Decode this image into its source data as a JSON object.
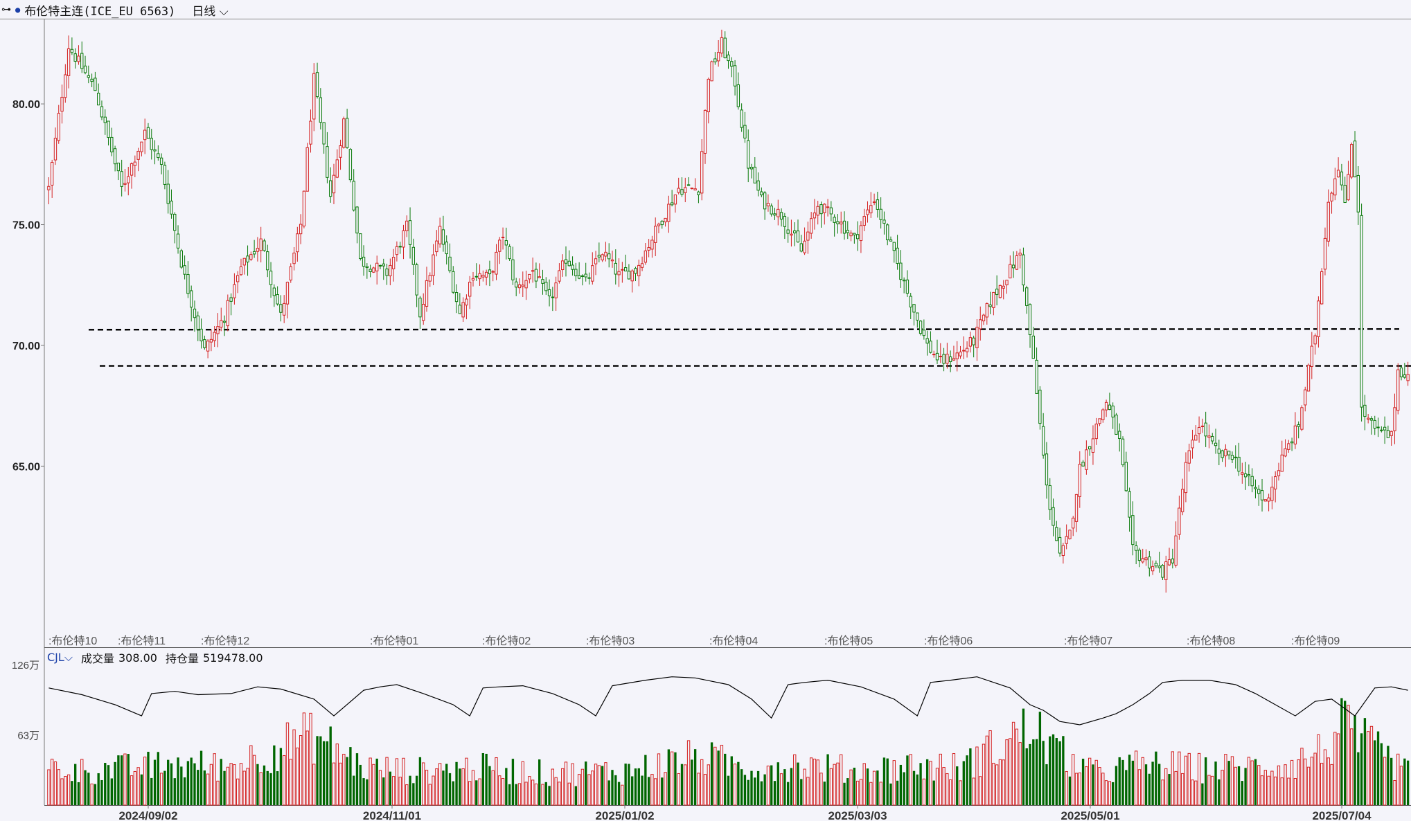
{
  "header": {
    "link_icon": "link-icon",
    "dot_icon": "dot-icon",
    "title": "布伦特主连(ICE_EU 6563)",
    "period": "日线",
    "period_icon": "chevron-down-icon"
  },
  "volume_panel": {
    "indicator": "CJL",
    "indicator_icon": "chevron-down-icon",
    "volume_label": "成交量",
    "volume_value": "308.00",
    "oi_label": "持仓量",
    "oi_value": "519478.00"
  },
  "colors": {
    "up": "#d42020",
    "down": "#0a7a0a",
    "bar_down": "#006600",
    "line": "#000000"
  },
  "chart_data": {
    "type": "candlestick",
    "price_axis": {
      "ylim": [
        57.5,
        83.5
      ],
      "ticks": [
        "80.00",
        "75.00",
        "70.00",
        "65.00"
      ]
    },
    "volume_axis": {
      "ylim": [
        0,
        126
      ],
      "ticks": [
        "126万",
        "63万"
      ]
    },
    "date_labels": [
      "2024/09/02",
      "2024/11/01",
      "2025/01/02",
      "2025/03/03",
      "2025/05/01",
      "2025/07/04"
    ],
    "contract_labels": [
      "布伦特10",
      "布伦特11",
      "布伦特12",
      "布伦特01",
      "布伦特02",
      "布伦特03",
      "布伦特04",
      "布伦特05",
      "布伦特06",
      "布伦特07",
      "布伦特08",
      "布伦特09"
    ],
    "horizontal_lines": [
      70.65,
      69.15
    ],
    "last_price": 68.8,
    "price_path": [
      [
        0,
        76.5
      ],
      [
        6,
        82.4
      ],
      [
        14,
        80.6
      ],
      [
        22,
        76.5
      ],
      [
        29,
        78.8
      ],
      [
        34,
        77.4
      ],
      [
        41,
        72.8
      ],
      [
        47,
        69.8
      ],
      [
        53,
        71.2
      ],
      [
        58,
        73.2
      ],
      [
        64,
        74.3
      ],
      [
        70,
        71.2
      ],
      [
        76,
        75.0
      ],
      [
        80,
        81.0
      ],
      [
        85,
        76.2
      ],
      [
        89,
        79.3
      ],
      [
        94,
        73.5
      ],
      [
        102,
        73.0
      ],
      [
        108,
        74.9
      ],
      [
        112,
        71.3
      ],
      [
        118,
        74.8
      ],
      [
        124,
        71.3
      ],
      [
        128,
        73.0
      ],
      [
        133,
        72.8
      ],
      [
        137,
        74.6
      ],
      [
        141,
        72.3
      ],
      [
        146,
        73.1
      ],
      [
        151,
        71.8
      ],
      [
        156,
        73.6
      ],
      [
        162,
        72.6
      ],
      [
        167,
        73.9
      ],
      [
        172,
        72.9
      ],
      [
        177,
        73.1
      ],
      [
        184,
        75.0
      ],
      [
        190,
        76.5
      ],
      [
        196,
        76.5
      ],
      [
        199,
        81.2
      ],
      [
        203,
        82.5
      ],
      [
        207,
        80.9
      ],
      [
        211,
        77.5
      ],
      [
        215,
        76.0
      ],
      [
        221,
        75.4
      ],
      [
        227,
        73.9
      ],
      [
        232,
        75.8
      ],
      [
        238,
        75.2
      ],
      [
        243,
        74.4
      ],
      [
        249,
        76.1
      ],
      [
        255,
        73.7
      ],
      [
        260,
        71.8
      ],
      [
        265,
        70.0
      ],
      [
        269,
        69.3
      ],
      [
        275,
        69.7
      ],
      [
        279,
        70.2
      ],
      [
        284,
        71.8
      ],
      [
        289,
        72.9
      ],
      [
        293,
        73.8
      ],
      [
        297,
        69.3
      ],
      [
        301,
        64.1
      ],
      [
        305,
        61.2
      ],
      [
        308,
        62.2
      ],
      [
        311,
        64.9
      ],
      [
        315,
        66.3
      ],
      [
        319,
        67.7
      ],
      [
        323,
        66.0
      ],
      [
        327,
        61.5
      ],
      [
        331,
        61.1
      ],
      [
        336,
        60.6
      ],
      [
        339,
        61.2
      ],
      [
        343,
        65.0
      ],
      [
        347,
        66.8
      ],
      [
        353,
        65.4
      ],
      [
        357,
        65.5
      ],
      [
        361,
        64.5
      ],
      [
        367,
        63.5
      ],
      [
        372,
        65.3
      ],
      [
        377,
        66.7
      ],
      [
        382,
        70.5
      ],
      [
        386,
        76.0
      ],
      [
        389,
        77.5
      ],
      [
        391,
        75.7
      ],
      [
        393,
        78.5
      ],
      [
        395,
        75.7
      ],
      [
        396,
        67.3
      ],
      [
        400,
        66.5
      ],
      [
        405,
        66.2
      ],
      [
        407,
        69.0
      ],
      [
        410,
        68.8
      ]
    ],
    "volume_path": [
      [
        0,
        35
      ],
      [
        10,
        32
      ],
      [
        25,
        35
      ],
      [
        40,
        38
      ],
      [
        55,
        36
      ],
      [
        70,
        55
      ],
      [
        80,
        65
      ],
      [
        95,
        35
      ],
      [
        110,
        32
      ],
      [
        130,
        35
      ],
      [
        150,
        30
      ],
      [
        175,
        32
      ],
      [
        190,
        42
      ],
      [
        197,
        45
      ],
      [
        210,
        35
      ],
      [
        225,
        38
      ],
      [
        245,
        32
      ],
      [
        260,
        37
      ],
      [
        275,
        35
      ],
      [
        292,
        65
      ],
      [
        297,
        72
      ],
      [
        305,
        48
      ],
      [
        315,
        30
      ],
      [
        330,
        38
      ],
      [
        345,
        35
      ],
      [
        360,
        35
      ],
      [
        375,
        38
      ],
      [
        385,
        52
      ],
      [
        390,
        72
      ],
      [
        397,
        58
      ],
      [
        410,
        30
      ]
    ],
    "oi_path": [
      [
        0,
        105
      ],
      [
        10,
        99
      ],
      [
        20,
        90
      ],
      [
        28,
        80
      ],
      [
        31,
        100
      ],
      [
        38,
        102
      ],
      [
        45,
        99
      ],
      [
        55,
        100
      ],
      [
        63,
        106
      ],
      [
        70,
        104
      ],
      [
        80,
        95
      ],
      [
        86,
        80
      ],
      [
        95,
        103
      ],
      [
        100,
        106
      ],
      [
        105,
        108
      ],
      [
        113,
        100
      ],
      [
        122,
        90
      ],
      [
        127,
        80
      ],
      [
        131,
        105
      ],
      [
        136,
        106
      ],
      [
        143,
        107
      ],
      [
        152,
        100
      ],
      [
        160,
        90
      ],
      [
        165,
        80
      ],
      [
        170,
        107
      ],
      [
        180,
        112
      ],
      [
        188,
        115
      ],
      [
        195,
        114
      ],
      [
        205,
        108
      ],
      [
        212,
        95
      ],
      [
        218,
        78
      ],
      [
        223,
        108
      ],
      [
        228,
        110
      ],
      [
        235,
        112
      ],
      [
        245,
        106
      ],
      [
        255,
        95
      ],
      [
        262,
        80
      ],
      [
        266,
        110
      ],
      [
        272,
        112
      ],
      [
        280,
        115
      ],
      [
        290,
        105
      ],
      [
        296,
        90
      ],
      [
        300,
        85
      ],
      [
        305,
        75
      ],
      [
        311,
        72
      ],
      [
        318,
        78
      ],
      [
        322,
        82
      ],
      [
        327,
        90
      ],
      [
        332,
        100
      ],
      [
        336,
        110
      ],
      [
        342,
        112
      ],
      [
        350,
        112
      ],
      [
        358,
        108
      ],
      [
        364,
        100
      ],
      [
        370,
        90
      ],
      [
        376,
        80
      ],
      [
        382,
        93
      ],
      [
        387,
        95
      ],
      [
        394,
        80
      ],
      [
        400,
        105
      ],
      [
        405,
        106
      ],
      [
        410,
        103
      ]
    ]
  }
}
